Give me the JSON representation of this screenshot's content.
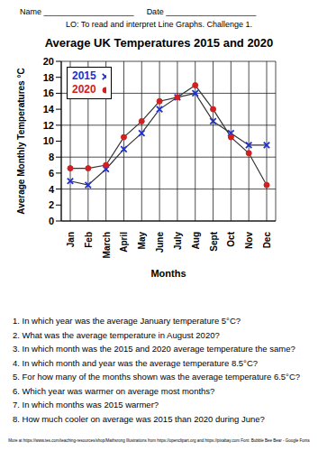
{
  "header": {
    "name_label": "Name ____________________",
    "date_label": "Date ____________________",
    "objective": "LO:  To read and interpret Line Graphs.  Challenge 1."
  },
  "chart_data": {
    "type": "line",
    "title": "Average UK Temperatures 2015 and 2020",
    "x_label": "Months",
    "y_label": "Average Monthly Temperatures °C",
    "categories": [
      "Jan",
      "Feb",
      "March",
      "April",
      "May",
      "June",
      "July",
      "Aug",
      "Sept",
      "Oct",
      "Nov",
      "Dec"
    ],
    "series": [
      {
        "name": "2015",
        "color": "#1f2fd0",
        "marker": "x",
        "values": [
          5,
          4.5,
          6.5,
          9,
          11,
          14,
          15.5,
          16,
          12.5,
          11,
          9.5,
          9.5
        ]
      },
      {
        "name": "2020",
        "color": "#d02020",
        "marker": "circle",
        "values": [
          6.6,
          6.6,
          7,
          10.5,
          12.5,
          15,
          15.5,
          17,
          14,
          10.5,
          8.5,
          4.5
        ]
      }
    ],
    "ylim": [
      0,
      20
    ],
    "yticks": [
      0,
      2,
      4,
      6,
      8,
      10,
      12,
      14,
      16,
      18,
      20
    ],
    "grid": true,
    "legend": "upper left"
  },
  "questions": [
    "1.  In which year was the average January temperature 5°C?",
    "2.  What was the average temperature in August 2020?",
    "3.  In which month was the 2015 and 2020 average temperature the same?",
    "4.  In which month and year was the average temperature 8.5°C?",
    "5.  For how many of the months shown was the average temperature 6.5°C?",
    "6.  Which year was warmer on average most months?",
    "7.  In which months was 2015 warmer?",
    "8.  How much cooler on average was 2015 than 2020 during June?"
  ],
  "footer": "More at https://www.tes.com/teaching-resources/shop/Mathsrong   Illustrations from https://openclipart.org and https://pixabay.com   Font: Bubble Bee Bear - Google Fonts"
}
